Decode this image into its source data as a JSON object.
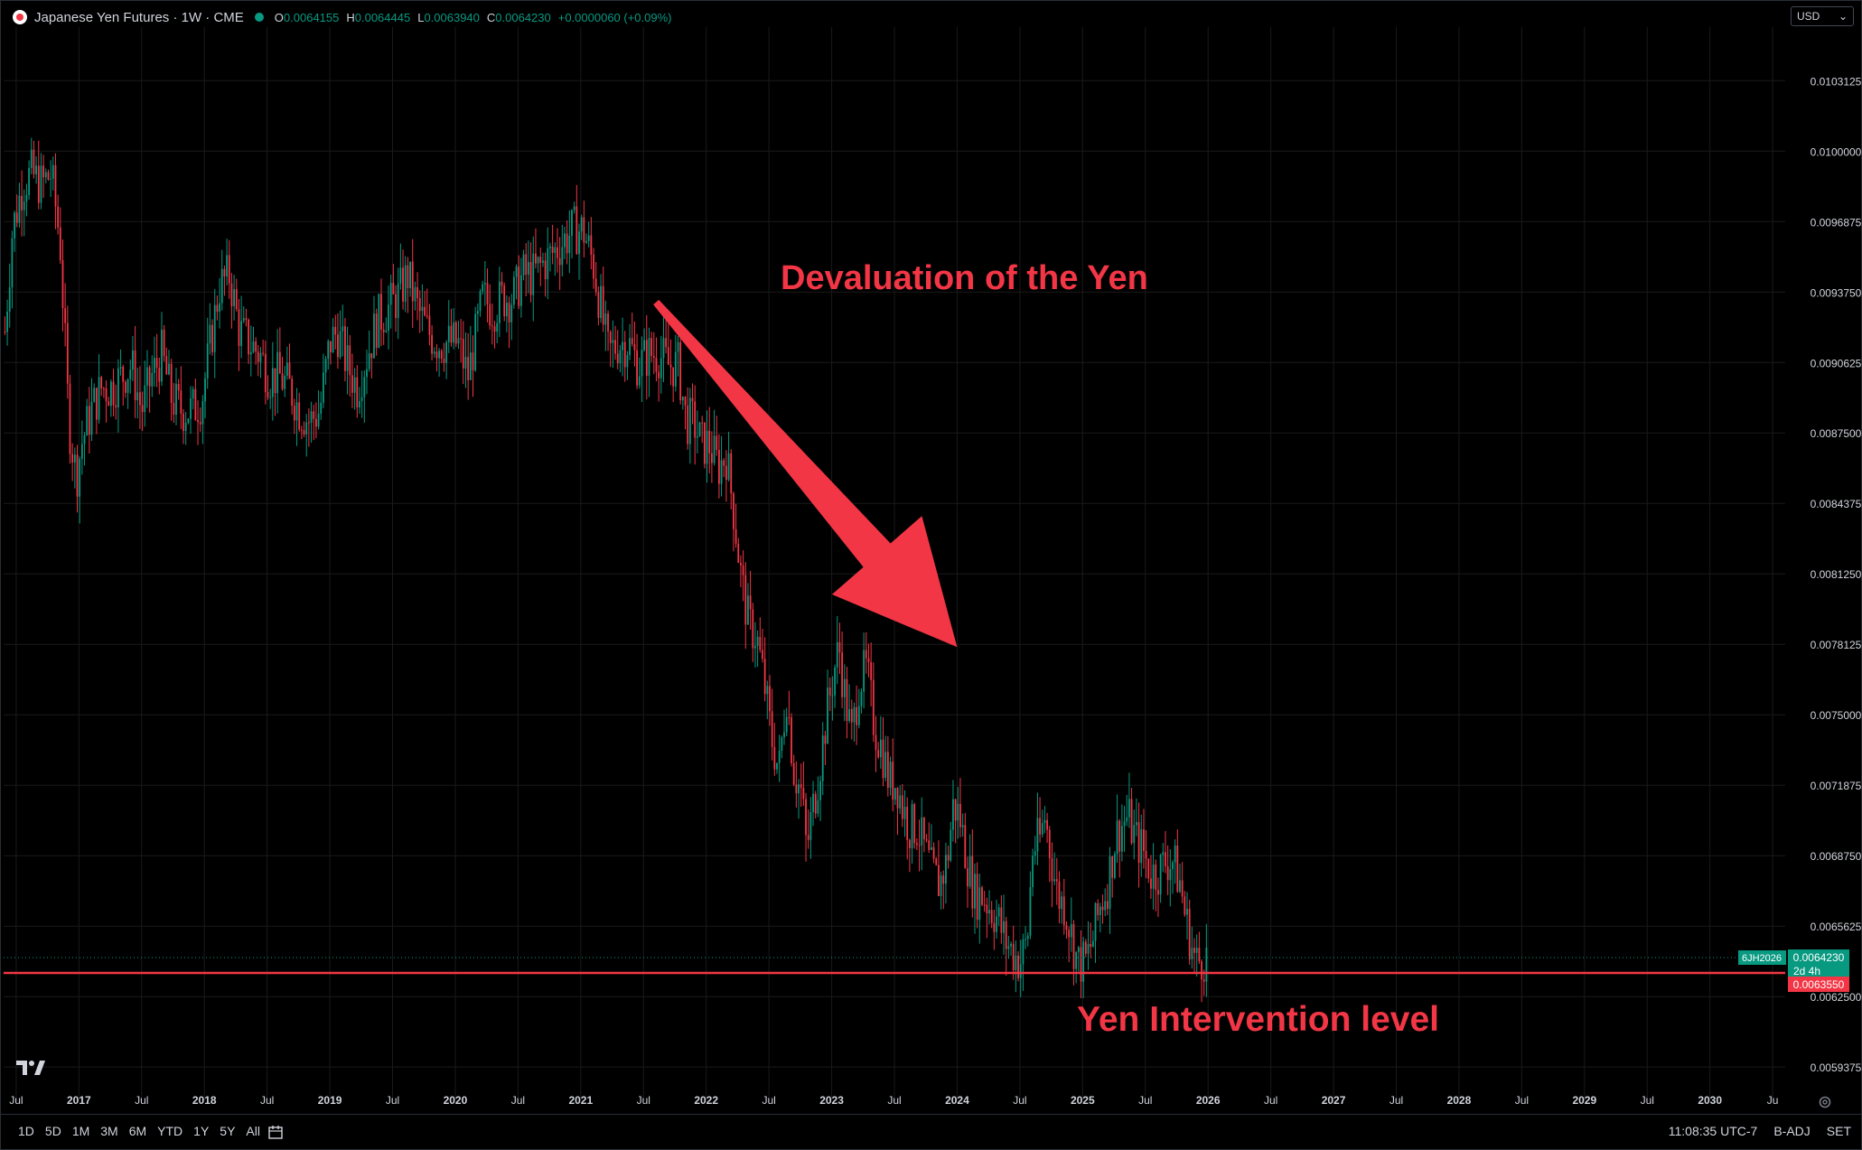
{
  "header": {
    "title": "Japanese Yen Futures · 1W · CME",
    "ohlc": {
      "o_label": "O",
      "o": "0.0064155",
      "h_label": "H",
      "h": "0.0064445",
      "l_label": "L",
      "l": "0.0063940",
      "c_label": "C",
      "c": "0.0064230",
      "change": "+0.0000060 (+0.09%)"
    }
  },
  "currency_selector": {
    "label": "USD"
  },
  "annotations": {
    "arrow_text": "Devaluation of the Yen",
    "level_text": "Yen Intervention level"
  },
  "price_labels": {
    "symbol": "6JH2026",
    "last": "0.0064230",
    "countdown": "2d 4h",
    "level": "0.0063550"
  },
  "bottom_bar": {
    "ranges": [
      "1D",
      "5D",
      "1M",
      "3M",
      "6M",
      "YTD",
      "1Y",
      "5Y",
      "All"
    ],
    "time": "11:08:35 UTC-7",
    "adj": "B-ADJ",
    "session": "SET"
  },
  "colors": {
    "up": "#089981",
    "down": "#f23645",
    "annotation": "#f23645",
    "background": "#000000",
    "grid": "#1a1a1a"
  },
  "chart_data": {
    "type": "candlestick",
    "title": "Japanese Yen Futures · 1W · CME",
    "y_axis": {
      "ticks": [
        0.0103125,
        0.01,
        0.0096875,
        0.009375,
        0.0090625,
        0.00875,
        0.0084375,
        0.008125,
        0.0078125,
        0.0075,
        0.0071875,
        0.006875,
        0.0065625,
        0.00625,
        0.0059375
      ],
      "tick_labels": [
        "0.0103125",
        "0.0100000",
        "0.0096875",
        "0.0093750",
        "0.0090625",
        "0.0087500",
        "0.0084375",
        "0.0081250",
        "0.0078125",
        "0.0075000",
        "0.0071875",
        "0.0068750",
        "0.0065625",
        "0.0062500",
        "0.0059375"
      ],
      "range": [
        0.00579,
        0.01055
      ]
    },
    "x_axis": {
      "ticks": [
        2016.5,
        2017,
        2017.5,
        2018,
        2018.5,
        2019,
        2019.5,
        2020,
        2020.5,
        2021,
        2021.5,
        2022,
        2022.5,
        2023,
        2023.5,
        2024,
        2024.5,
        2025,
        2025.5,
        2026,
        2026.5,
        2027,
        2027.5,
        2028,
        2028.5,
        2029,
        2029.5,
        2030,
        2030.5
      ],
      "tick_labels": [
        "Jul",
        "2017",
        "Jul",
        "2018",
        "Jul",
        "2019",
        "Jul",
        "2020",
        "Jul",
        "2021",
        "Jul",
        "2022",
        "Jul",
        "2023",
        "Jul",
        "2024",
        "Jul",
        "2025",
        "Jul",
        "2026",
        "Jul",
        "2027",
        "Jul",
        "2028",
        "Jul",
        "2029",
        "Jul",
        "2030",
        "Ju"
      ],
      "range": [
        2016.4,
        2030.6
      ]
    },
    "price_path": [
      [
        2016.41,
        0.0092
      ],
      [
        2016.47,
        0.00965
      ],
      [
        2016.55,
        0.00985
      ],
      [
        2016.62,
        0.0099
      ],
      [
        2016.7,
        0.00985
      ],
      [
        2016.78,
        0.0099
      ],
      [
        2016.85,
        0.0096
      ],
      [
        2016.92,
        0.0088
      ],
      [
        2016.98,
        0.00855
      ],
      [
        2017.02,
        0.0087
      ],
      [
        2017.1,
        0.00885
      ],
      [
        2017.18,
        0.00895
      ],
      [
        2017.26,
        0.00895
      ],
      [
        2017.34,
        0.009
      ],
      [
        2017.42,
        0.00905
      ],
      [
        2017.5,
        0.00885
      ],
      [
        2017.58,
        0.009
      ],
      [
        2017.66,
        0.0091
      ],
      [
        2017.74,
        0.0089
      ],
      [
        2017.82,
        0.00885
      ],
      [
        2017.9,
        0.00885
      ],
      [
        2017.98,
        0.0089
      ],
      [
        2018.05,
        0.00915
      ],
      [
        2018.12,
        0.0094
      ],
      [
        2018.2,
        0.00945
      ],
      [
        2018.28,
        0.0092
      ],
      [
        2018.36,
        0.00915
      ],
      [
        2018.44,
        0.0091
      ],
      [
        2018.52,
        0.009
      ],
      [
        2018.6,
        0.009
      ],
      [
        2018.68,
        0.00895
      ],
      [
        2018.76,
        0.00885
      ],
      [
        2018.84,
        0.0088
      ],
      [
        2018.92,
        0.00885
      ],
      [
        2019.0,
        0.00915
      ],
      [
        2019.06,
        0.0092
      ],
      [
        2019.14,
        0.00905
      ],
      [
        2019.22,
        0.00895
      ],
      [
        2019.3,
        0.0091
      ],
      [
        2019.38,
        0.00925
      ],
      [
        2019.46,
        0.0093
      ],
      [
        2019.54,
        0.00935
      ],
      [
        2019.62,
        0.00945
      ],
      [
        2019.7,
        0.0093
      ],
      [
        2019.78,
        0.0092
      ],
      [
        2019.86,
        0.00915
      ],
      [
        2019.94,
        0.00915
      ],
      [
        2020.02,
        0.00915
      ],
      [
        2020.1,
        0.009
      ],
      [
        2020.17,
        0.0092
      ],
      [
        2020.22,
        0.00935
      ],
      [
        2020.3,
        0.0093
      ],
      [
        2020.38,
        0.00935
      ],
      [
        2020.46,
        0.00935
      ],
      [
        2020.54,
        0.00945
      ],
      [
        2020.62,
        0.00945
      ],
      [
        2020.7,
        0.0095
      ],
      [
        2020.78,
        0.00955
      ],
      [
        2020.86,
        0.0096
      ],
      [
        2020.94,
        0.00965
      ],
      [
        2021.02,
        0.00965
      ],
      [
        2021.1,
        0.0095
      ],
      [
        2021.16,
        0.0093
      ],
      [
        2021.22,
        0.0091
      ],
      [
        2021.3,
        0.00915
      ],
      [
        2021.38,
        0.00915
      ],
      [
        2021.46,
        0.00905
      ],
      [
        2021.54,
        0.0091
      ],
      [
        2021.62,
        0.0091
      ],
      [
        2021.7,
        0.00905
      ],
      [
        2021.78,
        0.00905
      ],
      [
        2021.84,
        0.0088
      ],
      [
        2021.9,
        0.0088
      ],
      [
        2021.96,
        0.0087
      ],
      [
        2022.02,
        0.0087
      ],
      [
        2022.1,
        0.0086
      ],
      [
        2022.16,
        0.00865
      ],
      [
        2022.22,
        0.0084
      ],
      [
        2022.28,
        0.0081
      ],
      [
        2022.34,
        0.0079
      ],
      [
        2022.4,
        0.00785
      ],
      [
        2022.46,
        0.00765
      ],
      [
        2022.52,
        0.0074
      ],
      [
        2022.58,
        0.00725
      ],
      [
        2022.64,
        0.0076
      ],
      [
        2022.7,
        0.00725
      ],
      [
        2022.76,
        0.00715
      ],
      [
        2022.8,
        0.0069
      ],
      [
        2022.84,
        0.00705
      ],
      [
        2022.9,
        0.00725
      ],
      [
        2022.96,
        0.0075
      ],
      [
        2023.02,
        0.0077
      ],
      [
        2023.06,
        0.0078
      ],
      [
        2023.1,
        0.0076
      ],
      [
        2023.16,
        0.0074
      ],
      [
        2023.22,
        0.00765
      ],
      [
        2023.28,
        0.0077
      ],
      [
        2023.34,
        0.00745
      ],
      [
        2023.4,
        0.00735
      ],
      [
        2023.46,
        0.0072
      ],
      [
        2023.52,
        0.0072
      ],
      [
        2023.56,
        0.0071
      ],
      [
        2023.62,
        0.007
      ],
      [
        2023.68,
        0.007
      ],
      [
        2023.74,
        0.0069
      ],
      [
        2023.8,
        0.0068
      ],
      [
        2023.86,
        0.00675
      ],
      [
        2023.92,
        0.00685
      ],
      [
        2023.97,
        0.0071
      ],
      [
        2024.02,
        0.00705
      ],
      [
        2024.08,
        0.00685
      ],
      [
        2024.14,
        0.0067
      ],
      [
        2024.2,
        0.0067
      ],
      [
        2024.26,
        0.00665
      ],
      [
        2024.32,
        0.0066
      ],
      [
        2024.38,
        0.0065
      ],
      [
        2024.44,
        0.00645
      ],
      [
        2024.5,
        0.0064
      ],
      [
        2024.56,
        0.0065
      ],
      [
        2024.6,
        0.0069
      ],
      [
        2024.66,
        0.00695
      ],
      [
        2024.7,
        0.00705
      ],
      [
        2024.74,
        0.0069
      ],
      [
        2024.8,
        0.0067
      ],
      [
        2024.86,
        0.00665
      ],
      [
        2024.9,
        0.00655
      ],
      [
        2024.96,
        0.0064
      ],
      [
        2025.02,
        0.0064
      ],
      [
        2025.08,
        0.0065
      ],
      [
        2025.14,
        0.00665
      ],
      [
        2025.2,
        0.00675
      ],
      [
        2025.26,
        0.00695
      ],
      [
        2025.3,
        0.007
      ],
      [
        2025.36,
        0.00705
      ],
      [
        2025.42,
        0.00695
      ],
      [
        2025.48,
        0.0069
      ],
      [
        2025.54,
        0.0068
      ],
      [
        2025.6,
        0.0068
      ],
      [
        2025.66,
        0.00685
      ],
      [
        2025.72,
        0.00685
      ],
      [
        2025.78,
        0.00675
      ],
      [
        2025.82,
        0.0066
      ],
      [
        2025.86,
        0.0065
      ],
      [
        2025.9,
        0.0064
      ],
      [
        2025.96,
        0.00642
      ],
      [
        2026.0,
        0.00642
      ]
    ],
    "horizontal_level": {
      "value": 0.006355,
      "label": "Yen Intervention level"
    },
    "current_price": 0.006423,
    "arrow": {
      "from": [
        2021.6,
        0.00933
      ],
      "to": [
        2024.0,
        0.0078
      ],
      "label": "Devaluation of the Yen"
    },
    "grid": true,
    "legend": "none"
  }
}
